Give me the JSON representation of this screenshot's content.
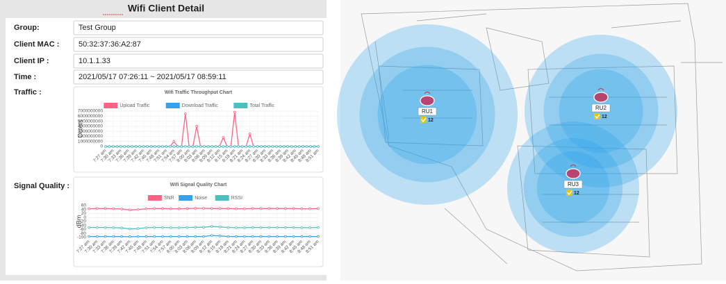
{
  "panel": {
    "title": "Wifi Client Detail",
    "fields": [
      {
        "label": "Group:",
        "value": "Test Group"
      },
      {
        "label": "Client MAC :",
        "value": "50:32:37:36:A2:87"
      },
      {
        "label": "Client IP :",
        "value": "10.1.1.33"
      },
      {
        "label": "Time :",
        "value": "2021/05/17 07:26:11 ~ 2021/05/17 08:59:11"
      }
    ]
  },
  "charts": [
    {
      "section": "Traffic :",
      "chart_data": {
        "type": "line",
        "title": "Wifi Traffic Throughput Chart",
        "y_label": "Octets",
        "categories": [
          "7:27 am",
          null,
          "7:30 am",
          null,
          "7:33 am",
          null,
          "7:36 am",
          null,
          "7:39 am",
          null,
          "7:42 am",
          null,
          "7:45 am",
          null,
          "7:48 am",
          null,
          "7:51 am",
          null,
          "7:54 am",
          null,
          "7:57 am",
          null,
          "8:00 am",
          null,
          "8:03 am",
          null,
          "8:06 am",
          null,
          "8:09 am",
          null,
          "8:12 am",
          null,
          "8:15 am",
          null,
          "8:18 am",
          null,
          "8:21 am",
          null,
          "8:24 am",
          null,
          "8:27 am",
          null,
          "8:30 am",
          null,
          "8:33 am",
          null,
          "8:36 am",
          null,
          "8:39 am",
          null,
          "8:42 am",
          null,
          "8:45 am",
          null,
          "8:48 am",
          null,
          "8:51 am"
        ],
        "series": [
          {
            "name": "Upload Traffic",
            "color": "#ff6384",
            "values": [
              0,
              0,
              0,
              0,
              0,
              0,
              0,
              0,
              0,
              0,
              0,
              0,
              0,
              0,
              0,
              0,
              0,
              0,
              1000000000,
              0,
              0,
              6500000000,
              0,
              0,
              4000000000,
              0,
              0,
              0,
              0,
              0,
              0,
              1800000000,
              0,
              0,
              6800000000,
              0,
              0,
              0,
              2500000000,
              0,
              0,
              0,
              0,
              0,
              0,
              0,
              0,
              0,
              0,
              0,
              0,
              0,
              0,
              0,
              0,
              0,
              0
            ]
          },
          {
            "name": "Download Traffic",
            "color": "#36a2eb",
            "values": [
              0,
              0,
              0,
              0,
              0,
              0,
              0,
              0,
              0,
              0,
              0,
              0,
              0,
              0,
              0,
              0,
              0,
              0,
              0,
              0,
              0,
              0,
              0,
              0,
              0,
              0,
              0,
              0,
              0,
              0,
              0,
              0,
              0,
              0,
              0,
              0,
              0,
              0,
              0,
              0,
              0,
              0,
              0,
              0,
              0,
              0,
              0,
              0,
              0,
              0,
              0,
              0,
              0,
              0,
              0,
              0,
              0
            ]
          },
          {
            "name": "Total Traffic",
            "color": "#4bc0c0",
            "values": [
              0,
              0,
              0,
              0,
              0,
              0,
              0,
              0,
              0,
              0,
              0,
              0,
              0,
              0,
              0,
              0,
              0,
              0,
              0,
              0,
              0,
              0,
              0,
              0,
              0,
              0,
              0,
              0,
              0,
              0,
              0,
              0,
              0,
              0,
              0,
              0,
              0,
              0,
              0,
              0,
              0,
              0,
              0,
              0,
              0,
              0,
              0,
              0,
              0,
              0,
              0,
              0,
              0,
              0,
              0,
              0,
              0
            ]
          }
        ],
        "ylim": [
          0,
          7000000000
        ],
        "yticks": [
          0,
          1000000000,
          2000000000,
          3000000000,
          4000000000,
          5000000000,
          6000000000,
          7000000000
        ],
        "legend": "top"
      }
    },
    {
      "section": "Signal Quality :",
      "chart_data": {
        "type": "line",
        "title": "Wifi Signal Quality Chart",
        "y_label": "dBm",
        "categories": [
          "7:27 am",
          "7:30 am",
          "7:33 am",
          "7:36 am",
          "7:39 am",
          "7:42 am",
          "7:45 am",
          "7:48 am",
          "7:51 am",
          "7:54 am",
          "7:57 am",
          "8:00 am",
          "8:03 am",
          "8:06 am",
          "8:09 am",
          "8:12 am",
          "8:15 am",
          "8:18 am",
          "8:21 am",
          "8:24 am",
          "8:27 am",
          "8:30 am",
          "8:33 am",
          "8:36 am",
          "8:39 am",
          "8:42 am",
          "8:45 am",
          "8:48 am",
          "8:51 am"
        ],
        "series": [
          {
            "name": "SNR",
            "color": "#ff6384",
            "values": [
              44,
              45,
              45,
              44,
              43,
              38,
              40,
              44,
              45,
              45,
              44,
              44,
              45,
              46,
              46,
              45,
              45,
              45,
              44,
              44,
              45,
              45,
              45,
              45,
              45,
              45,
              44,
              44,
              45
            ]
          },
          {
            "name": "Noise",
            "color": "#36a2eb",
            "values": [
              -95,
              -95,
              -95,
              -95,
              -95,
              -96,
              -95,
              -95,
              -95,
              -95,
              -95,
              -95,
              -95,
              -95,
              -95,
              -90,
              -92,
              -95,
              -95,
              -95,
              -95,
              -95,
              -95,
              -95,
              -95,
              -95,
              -95,
              -95,
              -95
            ]
          },
          {
            "name": "RSSI",
            "color": "#4bc0c0",
            "values": [
              -50,
              -50,
              -50,
              -51,
              -52,
              -57,
              -55,
              -51,
              -50,
              -50,
              -51,
              -51,
              -50,
              -49,
              -49,
              -45,
              -47,
              -50,
              -51,
              -51,
              -50,
              -50,
              -50,
              -50,
              -50,
              -50,
              -51,
              -51,
              -50
            ]
          }
        ],
        "ylim": [
          -100,
          60
        ],
        "yticks": [
          60,
          40,
          20,
          0,
          -20,
          -40,
          -60,
          -80,
          -100
        ],
        "legend": "top"
      }
    }
  ],
  "map": {
    "units": [
      {
        "label": "RU1",
        "clients": 12
      },
      {
        "label": "RU2",
        "clients": 12
      },
      {
        "label": "RU3",
        "clients": 12
      }
    ]
  }
}
